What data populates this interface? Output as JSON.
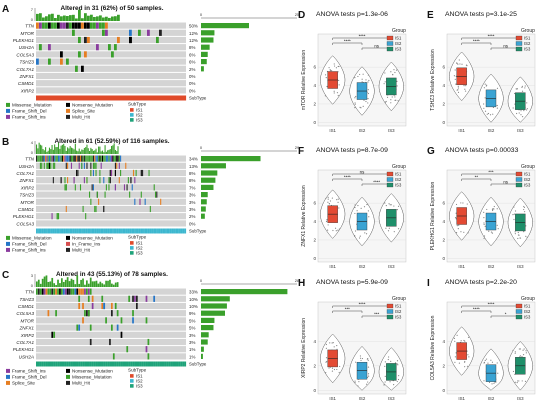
{
  "colors": {
    "missense": "#3aa02b",
    "nonsense": "#000000",
    "frame_shift_del": "#2475c7",
    "frame_shift_ins": "#8a3c9e",
    "splice_site": "#e67e22",
    "in_frame_ins": "#d64f4f",
    "multi_hit": "#222222",
    "bg_cell": "#d4d4d4",
    "is1": "#e34a33",
    "is2": "#3aa3d3",
    "is3": "#1f8f6a",
    "subtype_a": "#e04a2a",
    "subtype_b": "#3cb7cf",
    "subtype_c": "#1fa37a"
  },
  "oncoplots": [
    {
      "letter": "A",
      "title": "Altered in 31 (62%) of 50 samples.",
      "top_axis_max": "7",
      "side_axis": [
        "0",
        "25"
      ],
      "genes": [
        {
          "name": "TTN",
          "pct": "50%",
          "bar": 0.5
        },
        {
          "name": "MTOR",
          "pct": "12%",
          "bar": 0.14
        },
        {
          "name": "PLEKHG1",
          "pct": "12%",
          "bar": 0.13
        },
        {
          "name": "USH2A",
          "pct": "8%",
          "bar": 0.09
        },
        {
          "name": "COL5A3",
          "pct": "6%",
          "bar": 0.07
        },
        {
          "name": "TSHZ3",
          "pct": "6%",
          "bar": 0.06
        },
        {
          "name": "COL7A1",
          "pct": "2%",
          "bar": 0.03
        },
        {
          "name": "ZNFX1",
          "pct": "0%",
          "bar": 0.0
        },
        {
          "name": "CSMD1",
          "pct": "0%",
          "bar": 0.0
        },
        {
          "name": "XIRP2",
          "pct": "0%",
          "bar": 0.0
        }
      ],
      "subtype_label": "SubType",
      "legend": [
        "Missense_Mutation",
        "Nonsense_Mutation",
        "Frame_Shift_Del",
        "Splice_Site",
        "Frame_Shift_Ins",
        "Multi_Hit"
      ],
      "subtype_legend_title": "SubType",
      "subtype_legend": [
        "IS1",
        "IS2",
        "IS3"
      ]
    },
    {
      "letter": "B",
      "title": "Altered in 61 (52.59%) of 116 samples.",
      "top_axis_max": "4",
      "side_axis": [
        "0",
        "29"
      ],
      "genes": [
        {
          "name": "TTN",
          "pct": "34%",
          "bar": 0.62
        },
        {
          "name": "USH2A",
          "pct": "13%",
          "bar": 0.26
        },
        {
          "name": "COL7A1",
          "pct": "8%",
          "bar": 0.17
        },
        {
          "name": "ZNFX1",
          "pct": "8%",
          "bar": 0.15
        },
        {
          "name": "XIRP2",
          "pct": "7%",
          "bar": 0.13
        },
        {
          "name": "TSHZ3",
          "pct": "3%",
          "bar": 0.07
        },
        {
          "name": "MTOR",
          "pct": "3%",
          "bar": 0.06
        },
        {
          "name": "CSMD1",
          "pct": "3%",
          "bar": 0.05
        },
        {
          "name": "PLEKHG1",
          "pct": "2%",
          "bar": 0.04
        },
        {
          "name": "COL5A3",
          "pct": "0%",
          "bar": 0.0
        }
      ],
      "subtype_label": "SubType",
      "legend": [
        "Missense_Mutation",
        "Nonsense_Mutation",
        "Frame_Shift_Del",
        "In_Frame_Ins",
        "Frame_Shift_Ins",
        "Multi_Hit"
      ],
      "subtype_legend_title": "SubType",
      "subtype_legend": [
        "IS1",
        "IS2",
        "IS3"
      ]
    },
    {
      "letter": "C",
      "title": "Altered in 43 (55.13%) of 78 samples.",
      "top_axis_max": "3",
      "side_axis": [
        "0",
        "28"
      ],
      "genes": [
        {
          "name": "TTN",
          "pct": "33%",
          "bar": 0.9
        },
        {
          "name": "TSHZ3",
          "pct": "10%",
          "bar": 0.3
        },
        {
          "name": "CSMD1",
          "pct": "10%",
          "bar": 0.27
        },
        {
          "name": "COL5A3",
          "pct": "9%",
          "bar": 0.25
        },
        {
          "name": "MTOR",
          "pct": "5%",
          "bar": 0.14
        },
        {
          "name": "ZNFX1",
          "pct": "5%",
          "bar": 0.13
        },
        {
          "name": "XIRP2",
          "pct": "3%",
          "bar": 0.08
        },
        {
          "name": "COL7A1",
          "pct": "3%",
          "bar": 0.07
        },
        {
          "name": "PLEKHG1",
          "pct": "1%",
          "bar": 0.03
        },
        {
          "name": "USH2A",
          "pct": "1%",
          "bar": 0.02
        }
      ],
      "subtype_label": "SubType",
      "legend": [
        "Frame_Shift_Ins",
        "Nonsense_Mutation",
        "Frame_Shift_Del",
        "Missense_Mutation",
        "Splice_Site",
        "Multi_Hit"
      ],
      "subtype_legend_title": "SubType",
      "subtype_legend": [
        "IS1",
        "IS2",
        "IS3"
      ]
    }
  ],
  "chart_data": [
    {
      "type": "violin",
      "letter": "D",
      "title": "ANOVA tests p=1.3e-06",
      "ylabel": "mTOR Relative Expression",
      "categories": [
        "IS1",
        "IS2",
        "IS3"
      ],
      "medians": [
        4.6,
        3.4,
        3.9
      ],
      "ylim": [
        0,
        8
      ],
      "ticks": [
        "0",
        "2",
        "4",
        "6"
      ],
      "brackets": [
        "****",
        "****",
        "ns"
      ],
      "legend_title": "Group",
      "legend": [
        "IS1",
        "IS2",
        "IS3"
      ]
    },
    {
      "type": "violin",
      "letter": "E",
      "title": "ANOVA tests p=3.1e-25",
      "ylabel": "TSHZ3 Relative Expression",
      "categories": [
        "IS1",
        "IS2",
        "IS3"
      ],
      "medians": [
        5.0,
        2.6,
        2.3
      ],
      "ylim": [
        0,
        8
      ],
      "ticks": [
        "0",
        "2",
        "4",
        "6"
      ],
      "brackets": [
        "****",
        "****",
        "ns"
      ],
      "legend_title": "Group",
      "legend": [
        "IS1",
        "IS2",
        "IS3"
      ]
    },
    {
      "type": "violin",
      "letter": "F",
      "title": "ANOVA tests p=8.7e-09",
      "ylabel": "ZNFX1 Relative Expression",
      "categories": [
        "IS1",
        "IS2",
        "IS3"
      ],
      "medians": [
        4.8,
        4.0,
        4.4
      ],
      "ylim": [
        0,
        8
      ],
      "ticks": [
        "0",
        "2",
        "4",
        "6"
      ],
      "brackets": [
        "ns",
        "****",
        "****"
      ],
      "legend_title": "Group",
      "legend": [
        "IS1",
        "IS2",
        "IS3"
      ]
    },
    {
      "type": "violin",
      "letter": "G",
      "title": "ANOVA tests p=0.00033",
      "ylabel": "PLEKHG1 Relative Expression",
      "categories": [
        "IS1",
        "IS2",
        "IS3"
      ],
      "medians": [
        4.6,
        4.0,
        3.9
      ],
      "ylim": [
        0,
        8
      ],
      "ticks": [
        "0",
        "2",
        "4",
        "6"
      ],
      "brackets": [
        "***",
        "**",
        "ns"
      ],
      "legend_title": "Group",
      "legend": [
        "IS1",
        "IS2",
        "IS3"
      ]
    },
    {
      "type": "violin",
      "letter": "H",
      "title": "ANOVA tests p=5.9e-09",
      "ylabel": "XIRP2 Relative Expression",
      "categories": [
        "IS1",
        "IS2",
        "IS3"
      ],
      "medians": [
        2.6,
        1.6,
        1.5
      ],
      "ylim": [
        0,
        6
      ],
      "ticks": [
        "0",
        "2",
        "4"
      ],
      "brackets": [
        "****",
        "***",
        "***"
      ],
      "legend_title": "Group",
      "legend": [
        "IS1",
        "IS2",
        "IS3"
      ]
    },
    {
      "type": "violin",
      "letter": "I",
      "title": "ANOVA tests p=2.2e-20",
      "ylabel": "COL5A3 Relative Expression",
      "categories": [
        "IS1",
        "IS2",
        "IS3"
      ],
      "medians": [
        3.2,
        1.4,
        2.0
      ],
      "ylim": [
        0,
        6
      ],
      "ticks": [
        "0",
        "2",
        "4"
      ],
      "brackets": [
        "****",
        "****",
        "*"
      ],
      "legend_title": "Group",
      "legend": [
        "IS1",
        "IS2",
        "IS3"
      ]
    }
  ]
}
